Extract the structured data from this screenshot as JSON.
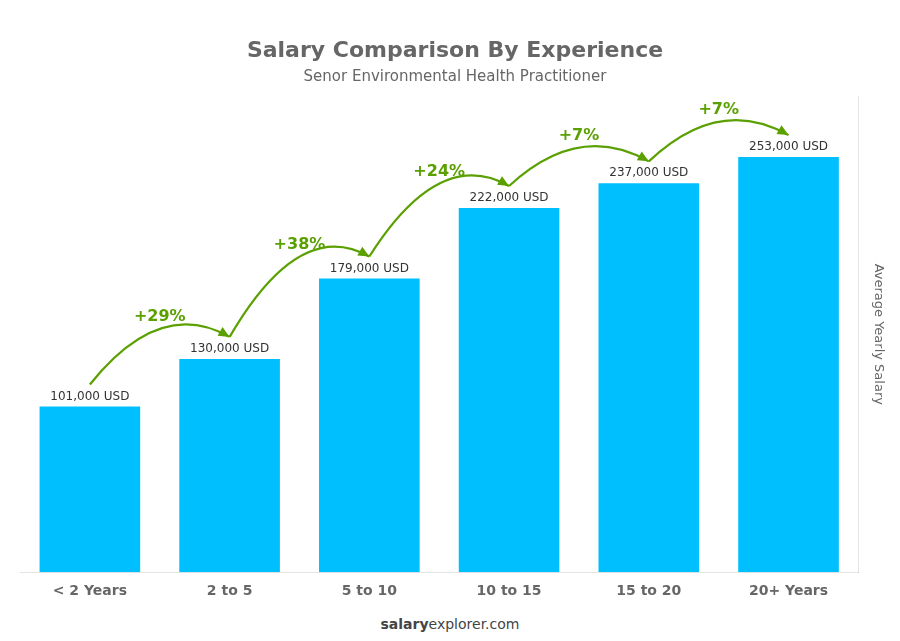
{
  "chart_data": {
    "type": "bar",
    "title": "Salary Comparison By Experience",
    "subtitle": "Senor Environmental Health Practitioner",
    "ylabel": "Average Yearly Salary",
    "categories": [
      "< 2 Years",
      "2 to 5",
      "5 to 10",
      "10 to 15",
      "15 to 20",
      "20+ Years"
    ],
    "values": [
      101000,
      130000,
      179000,
      222000,
      237000,
      253000
    ],
    "value_labels": [
      "101,000 USD",
      "130,000 USD",
      "179,000 USD",
      "222,000 USD",
      "237,000 USD",
      "253,000 USD"
    ],
    "data_labels": true,
    "color": "#00BFFF",
    "ylim": [
      0,
      290000
    ],
    "grid": false,
    "tick_labels": "x",
    "annotations": [
      {
        "text": "+29%",
        "from": "< 2 Years",
        "to": "2 to 5",
        "color": "#5aa000"
      },
      {
        "text": "+38%",
        "from": "2 to 5",
        "to": "5 to 10",
        "color": "#5aa000"
      },
      {
        "text": "+24%",
        "from": "5 to 10",
        "to": "10 to 15",
        "color": "#5aa000"
      },
      {
        "text": "+7%",
        "from": "10 to 15",
        "to": "15 to 20",
        "color": "#5aa000"
      },
      {
        "text": "+7%",
        "from": "15 to 20",
        "to": "20+ Years",
        "color": "#5aa000"
      }
    ],
    "footer": [
      "salary",
      "explorer.com"
    ]
  }
}
